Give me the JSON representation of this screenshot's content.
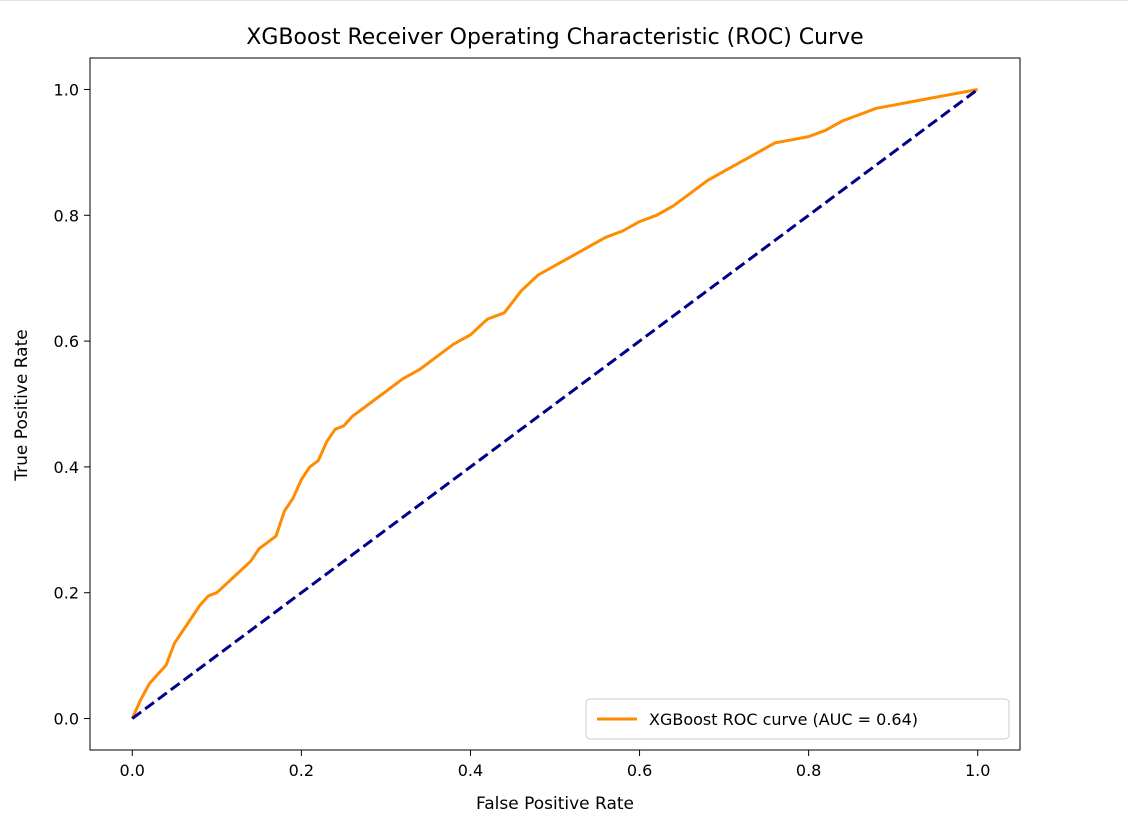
{
  "chart_data": {
    "type": "line",
    "title": "XGBoost Receiver Operating Characteristic (ROC) Curve",
    "xlabel": "False Positive Rate",
    "ylabel": "True Positive Rate",
    "xlim": [
      -0.05,
      1.05
    ],
    "ylim": [
      -0.05,
      1.05
    ],
    "x_ticks": [
      0.0,
      0.2,
      0.4,
      0.6,
      0.8,
      1.0
    ],
    "y_ticks": [
      0.0,
      0.2,
      0.4,
      0.6,
      0.8,
      1.0
    ],
    "x_tick_labels": [
      "0.0",
      "0.2",
      "0.4",
      "0.6",
      "0.8",
      "1.0"
    ],
    "y_tick_labels": [
      "0.0",
      "0.2",
      "0.4",
      "0.6",
      "0.8",
      "1.0"
    ],
    "grid": false,
    "legend": {
      "placement": "lower-right",
      "entries": [
        "XGBoost ROC curve (AUC = 0.64)"
      ]
    },
    "series": [
      {
        "name": "XGBoost ROC curve (AUC = 0.64)",
        "color": "#ff8c00",
        "style": "solid",
        "x": [
          0.0,
          0.01,
          0.02,
          0.03,
          0.04,
          0.05,
          0.06,
          0.07,
          0.08,
          0.09,
          0.1,
          0.12,
          0.14,
          0.15,
          0.16,
          0.17,
          0.18,
          0.19,
          0.2,
          0.21,
          0.22,
          0.23,
          0.24,
          0.25,
          0.26,
          0.28,
          0.3,
          0.32,
          0.34,
          0.36,
          0.38,
          0.4,
          0.42,
          0.44,
          0.46,
          0.48,
          0.5,
          0.52,
          0.54,
          0.56,
          0.58,
          0.6,
          0.62,
          0.64,
          0.66,
          0.68,
          0.7,
          0.72,
          0.74,
          0.76,
          0.78,
          0.8,
          0.82,
          0.84,
          0.86,
          0.88,
          0.9,
          0.92,
          0.94,
          0.96,
          0.98,
          1.0
        ],
        "y": [
          0.0,
          0.03,
          0.055,
          0.07,
          0.085,
          0.12,
          0.14,
          0.16,
          0.18,
          0.195,
          0.2,
          0.225,
          0.25,
          0.27,
          0.28,
          0.29,
          0.33,
          0.35,
          0.38,
          0.4,
          0.41,
          0.44,
          0.46,
          0.465,
          0.48,
          0.5,
          0.52,
          0.54,
          0.555,
          0.575,
          0.595,
          0.61,
          0.635,
          0.645,
          0.68,
          0.705,
          0.72,
          0.735,
          0.75,
          0.765,
          0.775,
          0.79,
          0.8,
          0.815,
          0.835,
          0.855,
          0.87,
          0.885,
          0.9,
          0.915,
          0.92,
          0.925,
          0.935,
          0.95,
          0.96,
          0.97,
          0.975,
          0.98,
          0.985,
          0.99,
          0.995,
          1.0
        ]
      },
      {
        "color": "#00008b",
        "style": "dashed",
        "x": [
          0.0,
          1.0
        ],
        "y": [
          0.0,
          1.0
        ]
      }
    ]
  }
}
